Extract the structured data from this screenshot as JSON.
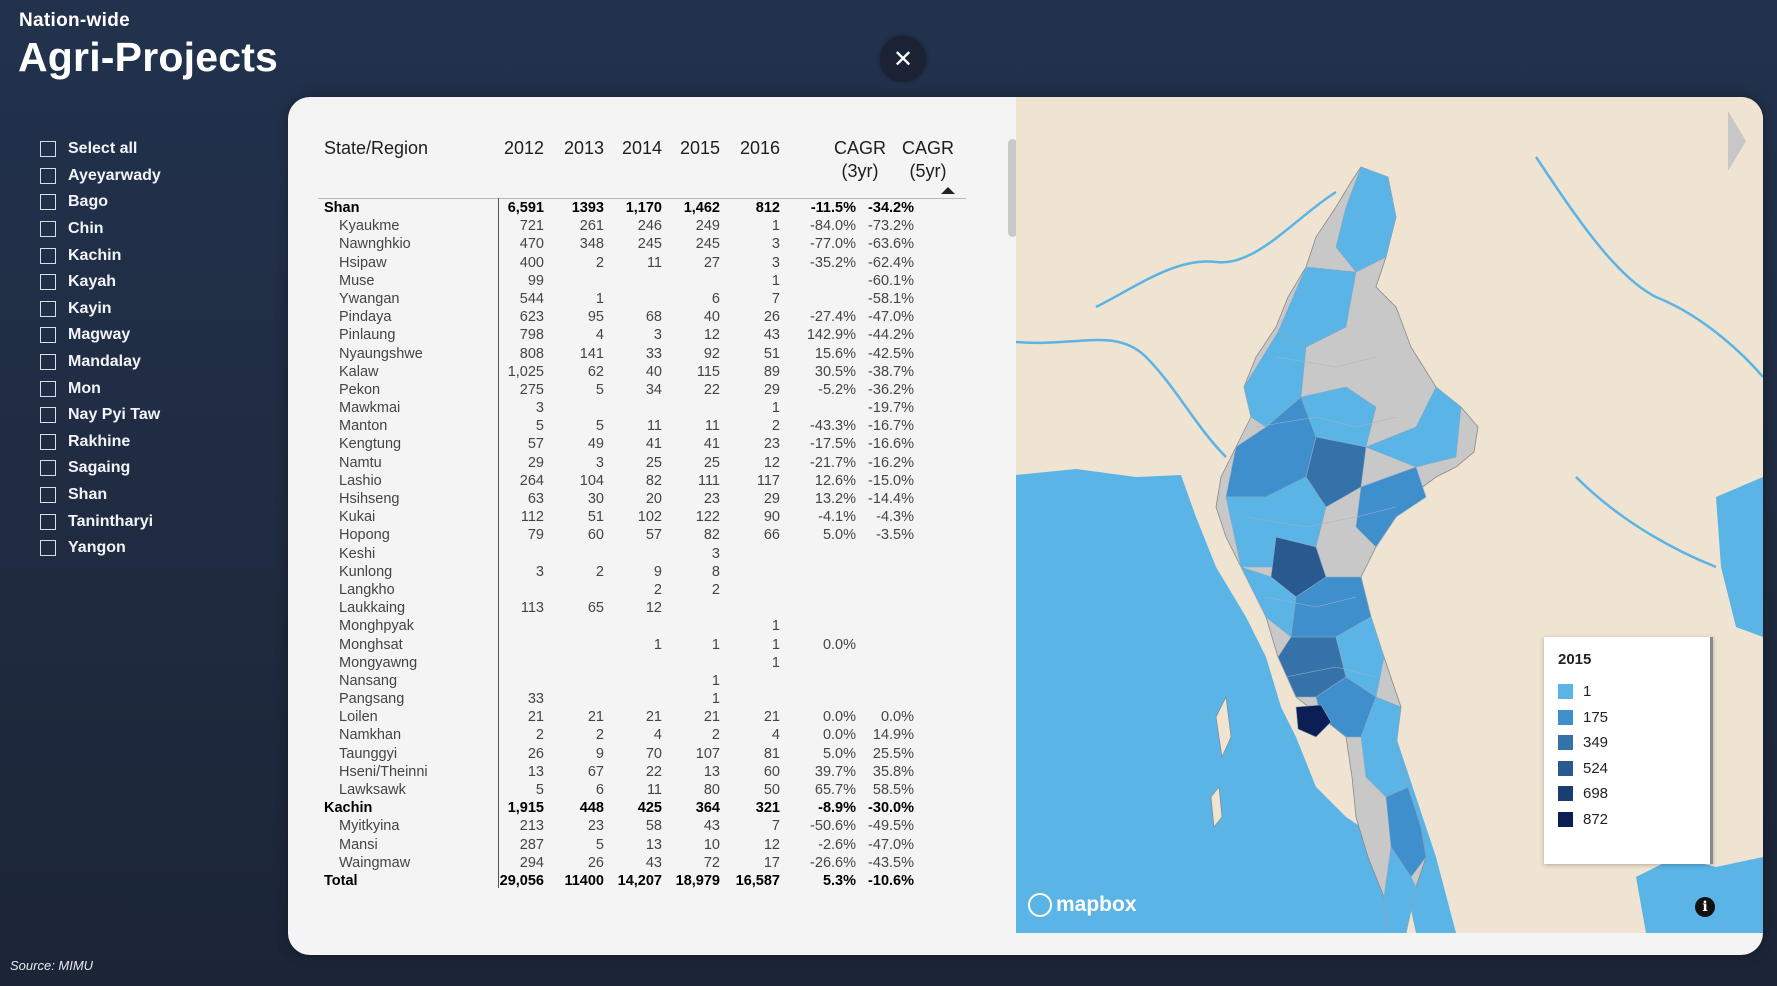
{
  "header": {
    "subtitle": "Nation-wide",
    "title": "Agri-Projects",
    "close_glyph": "✕"
  },
  "filters": [
    "Select all",
    "Ayeyarwady",
    "Bago",
    "Chin",
    "Kachin",
    "Kayah",
    "Kayin",
    "Magway",
    "Mandalay",
    "Mon",
    "Nay Pyi Taw",
    "Rakhine",
    "Sagaing",
    "Shan",
    "Tanintharyi",
    "Yangon"
  ],
  "source": "Source: MIMU",
  "table": {
    "columns": {
      "region": "State/Region",
      "y2012": "2012",
      "y2013": "2013",
      "y2014": "2014",
      "y2015": "2015",
      "y2016": "2016",
      "cagr3_a": "CAGR",
      "cagr3_b": "(3yr)",
      "cagr5_a": "CAGR",
      "cagr5_b": "(5yr)"
    },
    "sort": {
      "column": "CAGR (5yr)",
      "direction": "ascending"
    },
    "rows": [
      {
        "n": "Shan",
        "l": 0,
        "v": [
          "6,591",
          "1393",
          "1,170",
          "1,462",
          "812",
          "-11.5%",
          "-34.2%"
        ]
      },
      {
        "n": "Kyaukme",
        "l": 1,
        "v": [
          "721",
          "261",
          "246",
          "249",
          "1",
          "-84.0%",
          "-73.2%"
        ]
      },
      {
        "n": "Nawnghkio",
        "l": 1,
        "v": [
          "470",
          "348",
          "245",
          "245",
          "3",
          "-77.0%",
          "-63.6%"
        ]
      },
      {
        "n": "Hsipaw",
        "l": 1,
        "v": [
          "400",
          "2",
          "11",
          "27",
          "3",
          "-35.2%",
          "-62.4%"
        ]
      },
      {
        "n": "Muse",
        "l": 1,
        "v": [
          "99",
          "",
          "",
          "",
          "1",
          "",
          "-60.1%"
        ]
      },
      {
        "n": "Ywangan",
        "l": 1,
        "v": [
          "544",
          "1",
          "",
          "6",
          "7",
          "",
          "-58.1%"
        ]
      },
      {
        "n": "Pindaya",
        "l": 1,
        "v": [
          "623",
          "95",
          "68",
          "40",
          "26",
          "-27.4%",
          "-47.0%"
        ]
      },
      {
        "n": "Pinlaung",
        "l": 1,
        "v": [
          "798",
          "4",
          "3",
          "12",
          "43",
          "142.9%",
          "-44.2%"
        ]
      },
      {
        "n": "Nyaungshwe",
        "l": 1,
        "v": [
          "808",
          "141",
          "33",
          "92",
          "51",
          "15.6%",
          "-42.5%"
        ]
      },
      {
        "n": "Kalaw",
        "l": 1,
        "v": [
          "1,025",
          "62",
          "40",
          "115",
          "89",
          "30.5%",
          "-38.7%"
        ]
      },
      {
        "n": "Pekon",
        "l": 1,
        "v": [
          "275",
          "5",
          "34",
          "22",
          "29",
          "-5.2%",
          "-36.2%"
        ]
      },
      {
        "n": "Mawkmai",
        "l": 1,
        "v": [
          "3",
          "",
          "",
          "",
          "1",
          "",
          "-19.7%"
        ]
      },
      {
        "n": "Manton",
        "l": 1,
        "v": [
          "5",
          "5",
          "11",
          "11",
          "2",
          "-43.3%",
          "-16.7%"
        ]
      },
      {
        "n": "Kengtung",
        "l": 1,
        "v": [
          "57",
          "49",
          "41",
          "41",
          "23",
          "-17.5%",
          "-16.6%"
        ]
      },
      {
        "n": "Namtu",
        "l": 1,
        "v": [
          "29",
          "3",
          "25",
          "25",
          "12",
          "-21.7%",
          "-16.2%"
        ]
      },
      {
        "n": "Lashio",
        "l": 1,
        "v": [
          "264",
          "104",
          "82",
          "111",
          "117",
          "12.6%",
          "-15.0%"
        ]
      },
      {
        "n": "Hsihseng",
        "l": 1,
        "v": [
          "63",
          "30",
          "20",
          "23",
          "29",
          "13.2%",
          "-14.4%"
        ]
      },
      {
        "n": "Kukai",
        "l": 1,
        "v": [
          "112",
          "51",
          "102",
          "122",
          "90",
          "-4.1%",
          "-4.3%"
        ]
      },
      {
        "n": "Hopong",
        "l": 1,
        "v": [
          "79",
          "60",
          "57",
          "82",
          "66",
          "5.0%",
          "-3.5%"
        ]
      },
      {
        "n": "Keshi",
        "l": 1,
        "v": [
          "",
          "",
          "",
          "3",
          "",
          "",
          ""
        ]
      },
      {
        "n": "Kunlong",
        "l": 1,
        "v": [
          "3",
          "2",
          "9",
          "8",
          "",
          "",
          ""
        ]
      },
      {
        "n": "Langkho",
        "l": 1,
        "v": [
          "",
          "",
          "2",
          "2",
          "",
          "",
          ""
        ]
      },
      {
        "n": "Laukkaing",
        "l": 1,
        "v": [
          "113",
          "65",
          "12",
          "",
          "",
          "",
          ""
        ]
      },
      {
        "n": "Monghpyak",
        "l": 1,
        "v": [
          "",
          "",
          "",
          "",
          "1",
          "",
          ""
        ]
      },
      {
        "n": "Monghsat",
        "l": 1,
        "v": [
          "",
          "",
          "1",
          "1",
          "1",
          "0.0%",
          ""
        ]
      },
      {
        "n": "Mongyawng",
        "l": 1,
        "v": [
          "",
          "",
          "",
          "",
          "1",
          "",
          ""
        ]
      },
      {
        "n": "Nansang",
        "l": 1,
        "v": [
          "",
          "",
          "",
          "1",
          "",
          "",
          ""
        ]
      },
      {
        "n": "Pangsang",
        "l": 1,
        "v": [
          "33",
          "",
          "",
          "1",
          "",
          "",
          ""
        ]
      },
      {
        "n": "Loilen",
        "l": 1,
        "v": [
          "21",
          "21",
          "21",
          "21",
          "21",
          "0.0%",
          "0.0%"
        ]
      },
      {
        "n": "Namkhan",
        "l": 1,
        "v": [
          "2",
          "2",
          "4",
          "2",
          "4",
          "0.0%",
          "14.9%"
        ]
      },
      {
        "n": "Taunggyi",
        "l": 1,
        "v": [
          "26",
          "9",
          "70",
          "107",
          "81",
          "5.0%",
          "25.5%"
        ]
      },
      {
        "n": "Hseni/Theinni",
        "l": 1,
        "v": [
          "13",
          "67",
          "22",
          "13",
          "60",
          "39.7%",
          "35.8%"
        ]
      },
      {
        "n": "Lawksawk",
        "l": 1,
        "v": [
          "5",
          "6",
          "11",
          "80",
          "50",
          "65.7%",
          "58.5%"
        ]
      },
      {
        "n": "Kachin",
        "l": 0,
        "v": [
          "1,915",
          "448",
          "425",
          "364",
          "321",
          "-8.9%",
          "-30.0%"
        ]
      },
      {
        "n": "Myitkyina",
        "l": 1,
        "v": [
          "213",
          "23",
          "58",
          "43",
          "7",
          "-50.6%",
          "-49.5%"
        ]
      },
      {
        "n": "Mansi",
        "l": 1,
        "v": [
          "287",
          "5",
          "13",
          "10",
          "12",
          "-2.6%",
          "-47.0%"
        ]
      },
      {
        "n": "Waingmaw",
        "l": 1,
        "v": [
          "294",
          "26",
          "43",
          "72",
          "17",
          "-26.6%",
          "-43.5%"
        ]
      },
      {
        "n": "Total",
        "l": 2,
        "v": [
          "29,056",
          "11400",
          "14,207",
          "18,979",
          "16,587",
          "5.3%",
          "-10.6%"
        ]
      }
    ]
  },
  "map": {
    "legend_title": "2015",
    "legend": [
      {
        "label": "1",
        "color": "#5ab4e6"
      },
      {
        "label": "175",
        "color": "#3f8fcc"
      },
      {
        "label": "349",
        "color": "#3672aa"
      },
      {
        "label": "524",
        "color": "#285a8f"
      },
      {
        "label": "698",
        "color": "#1b3d74"
      },
      {
        "label": "872",
        "color": "#0c1f55"
      }
    ],
    "attribution": "mapbox",
    "info_glyph": "i",
    "colors": {
      "land": "#efe3d2",
      "water": "#5ab4e6",
      "no_data": "#c8c8c8"
    }
  }
}
